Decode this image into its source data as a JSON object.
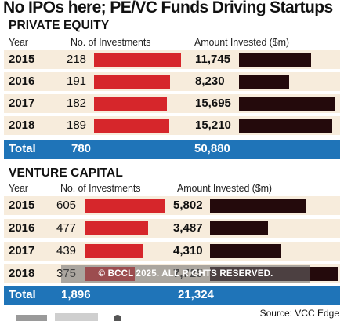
{
  "title": "No IPOs here; PE/VC Funds Driving Startups",
  "chart_data": [
    {
      "type": "table",
      "title": "PRIVATE EQUITY",
      "columns": [
        "Year",
        "No. of Investments",
        "Amount Invested ($m)"
      ],
      "categories": [
        "2015",
        "2016",
        "2017",
        "2018"
      ],
      "series": [
        {
          "name": "No. of Investments",
          "values": [
            218,
            191,
            182,
            189
          ],
          "display": [
            "218",
            "191",
            "182",
            "189"
          ],
          "color": "#d6262b"
        },
        {
          "name": "Amount Invested ($m)",
          "values": [
            11745,
            8230,
            15695,
            15210
          ],
          "display": [
            "11,745",
            "8,230",
            "15,695",
            "15,210"
          ],
          "color": "#240a0c"
        }
      ],
      "total": {
        "label": "Total",
        "investments": "780",
        "amount": "50,880"
      }
    },
    {
      "type": "table",
      "title": "VENTURE CAPITAL",
      "columns": [
        "Year",
        "No. of Investments",
        "Amount Invested ($m)"
      ],
      "categories": [
        "2015",
        "2016",
        "2017",
        "2018"
      ],
      "series": [
        {
          "name": "No. of Investments",
          "values": [
            605,
            477,
            439,
            375
          ],
          "display": [
            "605",
            "477",
            "439",
            "375"
          ],
          "color": "#d6262b"
        },
        {
          "name": "Amount Invested ($m)",
          "values": [
            5802,
            3487,
            4310,
            7725
          ],
          "display": [
            "5,802",
            "3,487",
            "4,310",
            "7,725"
          ],
          "color": "#240a0c"
        }
      ],
      "total": {
        "label": "Total",
        "investments": "1,896",
        "amount": "21,324"
      }
    }
  ],
  "watermark": "© BCCL 2025. ALL RIGHTS RESERVED.",
  "source": "Source: VCC Edge",
  "colors": {
    "row_bg": "#f7ecdc",
    "total_bg": "#1f74b8",
    "bar_count": "#d6262b",
    "bar_amount": "#240a0c"
  }
}
